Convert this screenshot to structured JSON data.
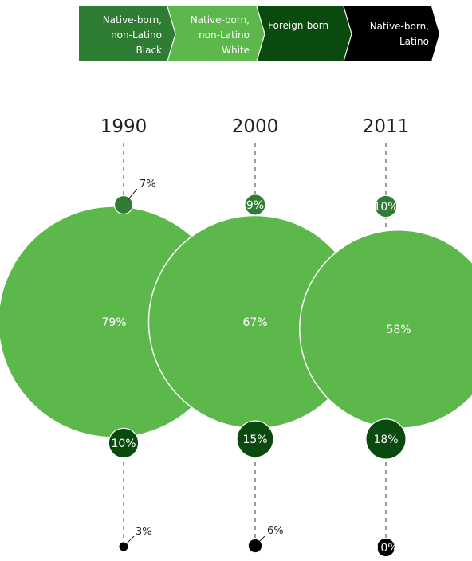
{
  "chart_data": {
    "type": "bubble",
    "title": "",
    "years": [
      "1990",
      "2000",
      "2011"
    ],
    "series": [
      {
        "key": "black",
        "name": "Native-born, non-Latino Black",
        "legend_lines": [
          "Native-born,",
          "non-Latino",
          "Black"
        ],
        "color": "#2e7d32",
        "values": [
          7,
          9,
          10
        ],
        "labels": [
          "7%",
          "9%",
          "10%"
        ]
      },
      {
        "key": "white",
        "name": "Native-born, non-Latino White",
        "legend_lines": [
          "Native-born,",
          "non-Latino",
          "White"
        ],
        "color": "#5cb84a",
        "values": [
          79,
          67,
          58
        ],
        "labels": [
          "79%",
          "67%",
          "58%"
        ]
      },
      {
        "key": "foreign",
        "name": "Foreign-born",
        "legend_lines": [
          "Foreign-born"
        ],
        "color": "#0b4a0f",
        "values": [
          10,
          15,
          18
        ],
        "labels": [
          "10%",
          "15%",
          "18%"
        ]
      },
      {
        "key": "latino",
        "name": "Native-born, Latino",
        "legend_lines": [
          "Native-born,",
          "Latino"
        ],
        "color": "#000000",
        "values": [
          3,
          6,
          10
        ],
        "labels": [
          "3%",
          "6%",
          "10%"
        ]
      }
    ]
  }
}
